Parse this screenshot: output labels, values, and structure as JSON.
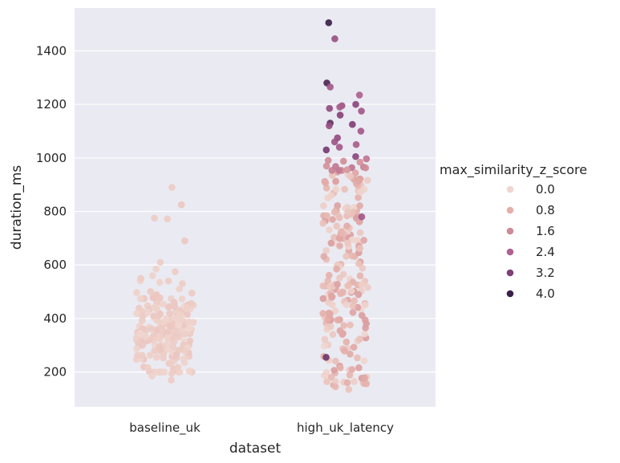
{
  "chart_data": {
    "type": "scatter",
    "subtype": "strip",
    "xlabel": "dataset",
    "ylabel": "duration_ms",
    "categories": [
      "baseline_uk",
      "high_uk_latency"
    ],
    "ylim": [
      70,
      1560
    ],
    "yticks": [
      200,
      400,
      600,
      800,
      1000,
      1200,
      1400
    ],
    "grid": true,
    "background": "#EAEAF2",
    "hue": {
      "name": "max_similarity_z_score",
      "range": [
        0.0,
        4.2
      ],
      "legend": [
        {
          "label": "0.0",
          "value": 0.0,
          "color": "#F0D6CF"
        },
        {
          "label": "0.8",
          "value": 0.8,
          "color": "#E4AFA9"
        },
        {
          "label": "1.6",
          "value": 1.6,
          "color": "#CE8A96"
        },
        {
          "label": "2.4",
          "value": 2.4,
          "color": "#AF6190"
        },
        {
          "label": "3.2",
          "value": 3.2,
          "color": "#7F3F78"
        },
        {
          "label": "4.0",
          "value": 4.0,
          "color": "#3A1F4A"
        }
      ]
    },
    "series": [
      {
        "category": "baseline_uk",
        "summary": {
          "n_approx": 220,
          "min": 170,
          "max": 890,
          "bulk_range": [
            200,
            550
          ]
        },
        "points": [
          {
            "y": 890,
            "hue": 0.2
          },
          {
            "y": 825,
            "hue": 0.3
          },
          {
            "y": 775,
            "hue": 0.2
          },
          {
            "y": 772,
            "hue": 0.2
          },
          {
            "y": 690,
            "hue": 0.3
          },
          {
            "y": 610,
            "hue": 0.2
          },
          {
            "y": 585,
            "hue": 0.1
          },
          {
            "y": 575,
            "hue": 0.2
          },
          {
            "y": 560,
            "hue": 0.1
          },
          {
            "y": 540,
            "hue": 0.2
          },
          {
            "y": 535,
            "hue": 0.1
          },
          {
            "y": 170,
            "hue": 0.2
          },
          {
            "y": 185,
            "hue": 0.1
          },
          {
            "y": 195,
            "hue": 0.2
          },
          {
            "y": 200,
            "hue": 0.1
          }
        ]
      },
      {
        "category": "high_uk_latency",
        "summary": {
          "n_approx": 260,
          "min": 135,
          "max": 1505
        },
        "points": [
          {
            "y": 1505,
            "hue": 4.0
          },
          {
            "y": 1445,
            "hue": 2.8
          },
          {
            "y": 1280,
            "hue": 3.8
          },
          {
            "y": 1265,
            "hue": 2.6
          },
          {
            "y": 1235,
            "hue": 2.4
          },
          {
            "y": 1200,
            "hue": 3.0
          },
          {
            "y": 1195,
            "hue": 2.7
          },
          {
            "y": 1190,
            "hue": 2.5
          },
          {
            "y": 1185,
            "hue": 2.9
          },
          {
            "y": 1175,
            "hue": 2.6
          },
          {
            "y": 1160,
            "hue": 3.1
          },
          {
            "y": 1130,
            "hue": 3.6
          },
          {
            "y": 1125,
            "hue": 3.2
          },
          {
            "y": 1120,
            "hue": 2.8
          },
          {
            "y": 1100,
            "hue": 2.6
          },
          {
            "y": 1075,
            "hue": 2.9
          },
          {
            "y": 1060,
            "hue": 2.7
          },
          {
            "y": 1050,
            "hue": 2.5
          },
          {
            "y": 1040,
            "hue": 2.6
          },
          {
            "y": 1030,
            "hue": 3.3
          },
          {
            "y": 1005,
            "hue": 3.0
          },
          {
            "y": 780,
            "hue": 2.6
          },
          {
            "y": 255,
            "hue": 3.4
          },
          {
            "y": 135,
            "hue": 0.4
          },
          {
            "y": 145,
            "hue": 0.6
          },
          {
            "y": 160,
            "hue": 0.8
          }
        ]
      }
    ]
  }
}
